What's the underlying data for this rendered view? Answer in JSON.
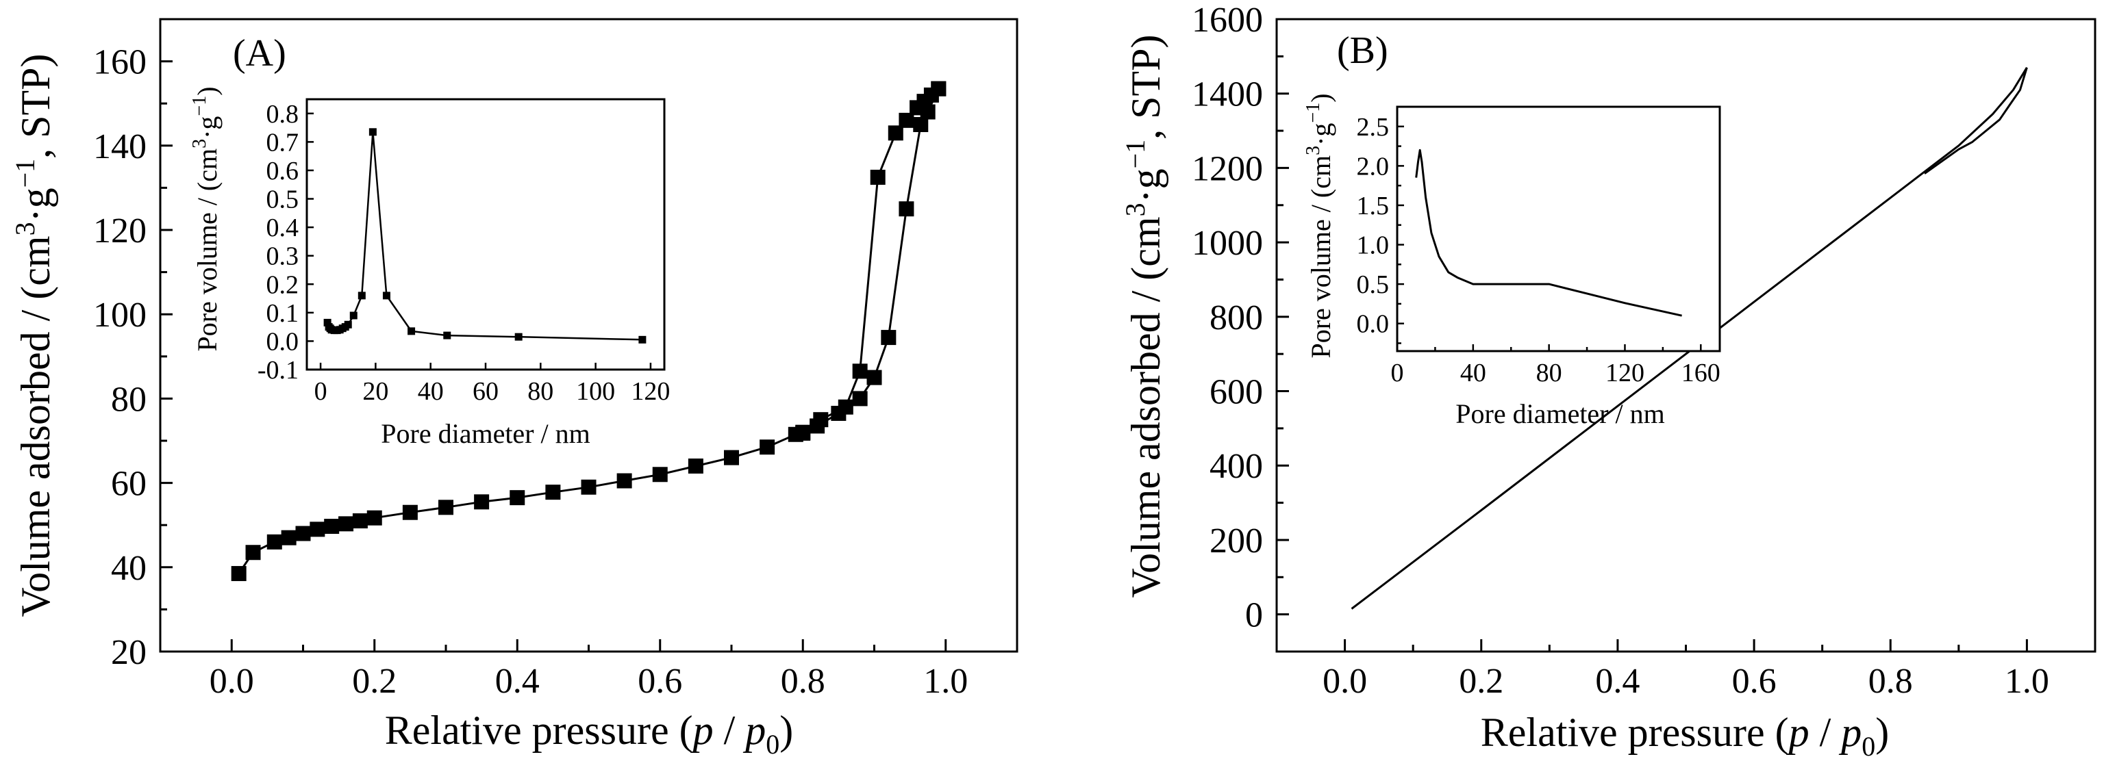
{
  "chart_data": [
    {
      "panel": "(A)",
      "type": "line",
      "marker": "square",
      "xlabel_main": "Relative pressure (",
      "xlabel_p": "p",
      "xlabel_slash": " / ",
      "xlabel_p0": "p",
      "xlabel_sub": "0",
      "xlabel_close": ")",
      "ylabel_main": "Volume adsorbed / (cm",
      "ylabel_sup3": "3",
      "ylabel_mid": "·g",
      "ylabel_supneg1": "−1",
      "ylabel_end": ", STP)",
      "xlim": [
        -0.1,
        1.1
      ],
      "ylim": [
        20,
        170
      ],
      "xticks": [
        0.0,
        0.2,
        0.4,
        0.6,
        0.8,
        1.0
      ],
      "xtick_labels": [
        "0.0",
        "0.2",
        "0.4",
        "0.6",
        "0.8",
        "1.0"
      ],
      "yticks": [
        20,
        40,
        60,
        80,
        100,
        120,
        140,
        160
      ],
      "ytick_labels": [
        "20",
        "40",
        "60",
        "80",
        "100",
        "120",
        "140",
        "160"
      ],
      "series": [
        {
          "x": [
            0.01,
            0.03,
            0.06,
            0.08,
            0.1,
            0.12,
            0.14,
            0.16,
            0.18,
            0.2,
            0.25,
            0.3,
            0.35,
            0.4,
            0.45,
            0.5,
            0.55,
            0.6,
            0.65,
            0.7,
            0.75,
            0.79,
            0.8,
            0.82,
            0.85,
            0.88,
            0.9,
            0.92,
            0.945,
            0.965,
            0.975,
            0.99
          ],
          "y": [
            38.5,
            43.5,
            46,
            47,
            48,
            49,
            49.7,
            50.3,
            51,
            51.7,
            53,
            54.2,
            55.5,
            56.5,
            57.8,
            59,
            60.5,
            62,
            64,
            66,
            68.5,
            71.5,
            71.8,
            73.5,
            76.5,
            80,
            85,
            94.5,
            125,
            145,
            148,
            153.5
          ]
        },
        {
          "x": [
            0.99,
            0.98,
            0.97,
            0.96,
            0.945,
            0.93,
            0.905,
            0.88,
            0.86,
            0.825,
            0.8
          ],
          "y": [
            153.5,
            152,
            150.5,
            149,
            146,
            143,
            132.5,
            86.5,
            78,
            75,
            72
          ]
        }
      ],
      "inset": {
        "type": "line",
        "xlabel": "Pore diameter / nm",
        "ylabel_main": "Pore volume / (cm",
        "ylabel_sup3": "3",
        "ylabel_mid": "·g",
        "ylabel_supneg1": "−1",
        "ylabel_end": ")",
        "xlim": [
          -5,
          125
        ],
        "ylim": [
          -0.1,
          0.85
        ],
        "xticks": [
          0,
          20,
          40,
          60,
          80,
          100,
          120
        ],
        "xtick_labels": [
          "0",
          "20",
          "40",
          "60",
          "80",
          "100",
          "120"
        ],
        "yticks": [
          -0.1,
          0.0,
          0.1,
          0.2,
          0.3,
          0.4,
          0.5,
          0.6,
          0.7,
          0.8
        ],
        "ytick_labels": [
          "-0.1",
          "0.0",
          "0.1",
          "0.2",
          "0.3",
          "0.4",
          "0.5",
          "0.6",
          "0.7",
          "0.8"
        ],
        "x": [
          2.5,
          3,
          3.5,
          4,
          5,
          6,
          7,
          8,
          9,
          10,
          12,
          15,
          19,
          24,
          33,
          46,
          72,
          117
        ],
        "y": [
          0.065,
          0.05,
          0.045,
          0.04,
          0.038,
          0.038,
          0.04,
          0.045,
          0.05,
          0.058,
          0.09,
          0.16,
          0.735,
          0.16,
          0.035,
          0.02,
          0.015,
          0.005
        ]
      }
    },
    {
      "panel": "(B)",
      "type": "line",
      "xlabel_main": "Relative pressure (",
      "xlabel_p": "p",
      "xlabel_slash": " / ",
      "xlabel_p0": "p",
      "xlabel_sub": "0",
      "xlabel_close": ")",
      "ylabel_main": "Volume adsorbed / (cm",
      "ylabel_sup3": "3",
      "ylabel_mid": "·g",
      "ylabel_supneg1": "−1",
      "ylabel_end": ", STP)",
      "xlim": [
        -0.1,
        1.1
      ],
      "ylim": [
        -100,
        1600
      ],
      "xticks": [
        0.0,
        0.2,
        0.4,
        0.6,
        0.8,
        1.0
      ],
      "xtick_labels": [
        "0.0",
        "0.2",
        "0.4",
        "0.6",
        "0.8",
        "1.0"
      ],
      "yticks": [
        0,
        200,
        400,
        600,
        800,
        1000,
        1200,
        1400,
        1600
      ],
      "ytick_labels": [
        "0",
        "200",
        "400",
        "600",
        "800",
        "1000",
        "1200",
        "1400",
        "1600"
      ],
      "series": [
        {
          "x": [
            0.01,
            0.2,
            0.4,
            0.6,
            0.8,
            0.9,
            0.95,
            0.98,
            1.0
          ],
          "y": [
            15,
            280,
            560,
            840,
            1120,
            1260,
            1345,
            1410,
            1470
          ]
        },
        {
          "x": [
            1.0,
            0.99,
            0.975,
            0.96,
            0.94,
            0.92,
            0.9,
            0.85
          ],
          "y": [
            1470,
            1410,
            1370,
            1330,
            1300,
            1270,
            1250,
            1185
          ]
        }
      ],
      "inset": {
        "type": "line",
        "xlabel": "Pore diameter / nm",
        "ylabel_main": "Pore volume / (cm",
        "ylabel_sup3": "3",
        "ylabel_mid": "·g",
        "ylabel_supneg1": "−1",
        "ylabel_end": ")",
        "xlim": [
          0,
          170
        ],
        "ylim": [
          -0.35,
          2.75
        ],
        "xticks": [
          0,
          40,
          80,
          120,
          160
        ],
        "xtick_labels": [
          "0",
          "40",
          "80",
          "120",
          "160"
        ],
        "yticks": [
          0.0,
          0.5,
          1.0,
          1.5,
          2.0,
          2.5
        ],
        "ytick_labels": [
          "0.0",
          "0.5",
          "1.0",
          "1.5",
          "2.0",
          "2.5"
        ],
        "x": [
          10,
          11,
          12,
          13,
          15,
          18,
          22,
          27,
          32,
          40,
          50,
          60,
          70,
          80,
          100,
          120,
          150
        ],
        "y": [
          1.85,
          2.05,
          2.2,
          2.05,
          1.6,
          1.15,
          0.85,
          0.65,
          0.58,
          0.5,
          0.5,
          0.5,
          0.5,
          0.5,
          0.38,
          0.26,
          0.1
        ]
      }
    }
  ]
}
